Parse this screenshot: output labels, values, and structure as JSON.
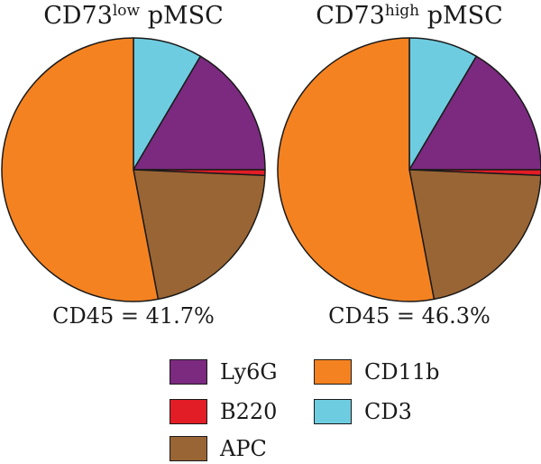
{
  "legend": [
    {
      "name": "Ly6G",
      "color": "#7b2a7f"
    },
    {
      "name": "B220",
      "color": "#e31d26"
    },
    {
      "name": "APC",
      "color": "#9a6534"
    },
    {
      "name": "CD11b",
      "color": "#f58220"
    },
    {
      "name": "CD3",
      "color": "#6ecce0"
    }
  ],
  "chart_data": [
    {
      "type": "pie",
      "title_main": "CD73",
      "title_sup": "low",
      "title_rest": " pMSC",
      "caption": "CD45 = 41.7%",
      "start_angle_deg": 0,
      "direction": "clockwise",
      "slices": [
        {
          "label": "CD3",
          "value": 8.5,
          "color": "#6ecce0"
        },
        {
          "label": "Ly6G",
          "value": 16.5,
          "color": "#7b2a7f"
        },
        {
          "label": "B220",
          "value": 0.7,
          "color": "#e31d26"
        },
        {
          "label": "APC",
          "value": 21.3,
          "color": "#9a6534"
        },
        {
          "label": "CD11b",
          "value": 53.0,
          "color": "#f58220"
        }
      ]
    },
    {
      "type": "pie",
      "title_main": "CD73",
      "title_sup": "high",
      "title_rest": " pMSC",
      "caption": "CD45 = 46.3%",
      "start_angle_deg": 0,
      "direction": "clockwise",
      "slices": [
        {
          "label": "CD3",
          "value": 8.5,
          "color": "#6ecce0"
        },
        {
          "label": "Ly6G",
          "value": 16.5,
          "color": "#7b2a7f"
        },
        {
          "label": "B220",
          "value": 0.7,
          "color": "#e31d26"
        },
        {
          "label": "APC",
          "value": 21.3,
          "color": "#9a6534"
        },
        {
          "label": "CD11b",
          "value": 53.0,
          "color": "#f58220"
        }
      ]
    }
  ]
}
